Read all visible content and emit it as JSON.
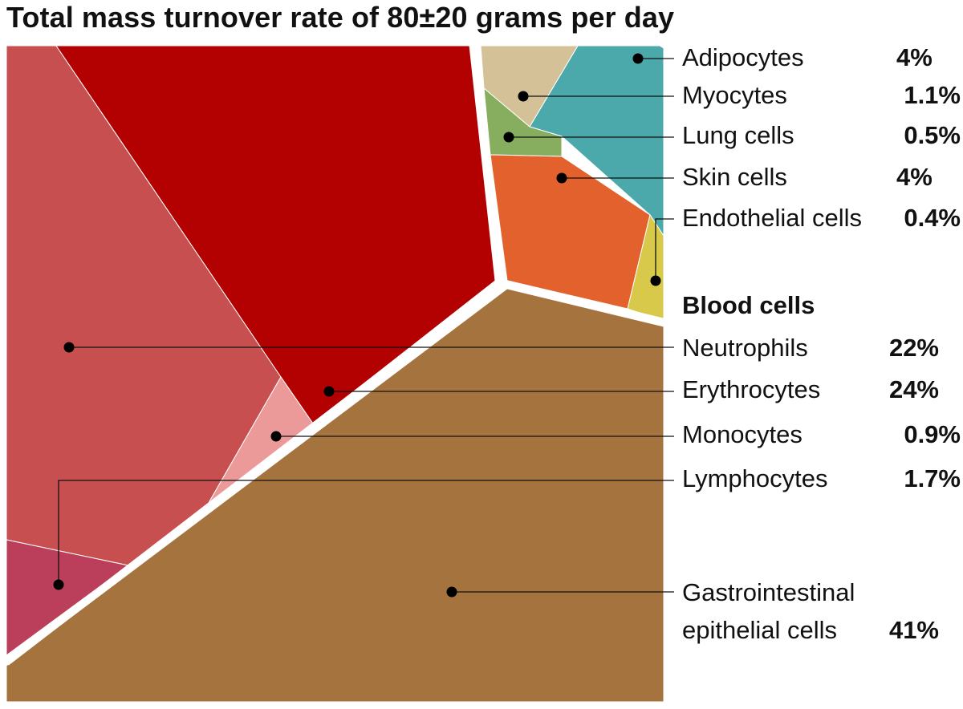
{
  "chart_data": {
    "type": "voronoi-treemap",
    "title": "Total mass turnover rate of 80±20 grams per day",
    "groups": [
      {
        "heading": "",
        "items": [
          {
            "label": "Adipocytes",
            "value": 4,
            "value_label": "4%",
            "color": "#4BA9AB"
          },
          {
            "label": "Myocytes",
            "value": 1.1,
            "value_label": "1.1%",
            "color": "#D5C197"
          },
          {
            "label": "Lung cells",
            "value": 0.5,
            "value_label": "0.5%",
            "color": "#86AE5E"
          },
          {
            "label": "Skin cells",
            "value": 4,
            "value_label": "4%",
            "color": "#E2612D"
          },
          {
            "label": "Endothelial cells",
            "value": 0.4,
            "value_label": "0.4%",
            "color": "#D8C94A"
          }
        ]
      },
      {
        "heading": "Blood cells",
        "items": [
          {
            "label": "Neutrophils",
            "value": 22,
            "value_label": "22%",
            "color": "#C84F4F"
          },
          {
            "label": "Erythrocytes",
            "value": 24,
            "value_label": "24%",
            "color": "#B30000"
          },
          {
            "label": "Monocytes",
            "value": 0.9,
            "value_label": "0.9%",
            "color": "#EC9999"
          },
          {
            "label": "Lymphocytes",
            "value": 1.7,
            "value_label": "1.7%",
            "color": "#BB3F5A"
          }
        ]
      },
      {
        "heading": "",
        "items": [
          {
            "label": "Gastrointestinal epithelial cells",
            "label_lines": [
              "Gastrointestinal",
              "epithelial cells"
            ],
            "value": 41,
            "value_label": "41%",
            "color": "#A5733D"
          }
        ]
      }
    ]
  }
}
